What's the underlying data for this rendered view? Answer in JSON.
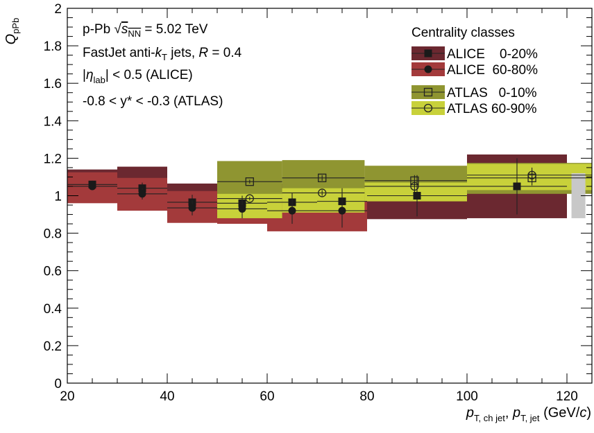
{
  "chart_data": {
    "type": "scatter",
    "title": "",
    "xlabel": {
      "p": "p",
      "sub1": "T, ch jet",
      "sep": ", ",
      "p2": "p",
      "sub2": "T, jet",
      "unit": " (GeV/",
      "c": "c",
      "close": ")"
    },
    "ylabel": {
      "q": "Q",
      "sub": "pPb"
    },
    "xlim": [
      20,
      125
    ],
    "ylim": [
      0,
      2
    ],
    "x_ticks": [
      "20",
      "40",
      "60",
      "80",
      "100",
      "120"
    ],
    "y_ticks": [
      "0",
      "0.2",
      "0.4",
      "0.6",
      "0.8",
      "1",
      "1.2",
      "1.4",
      "1.6",
      "1.8",
      "2"
    ],
    "x_tick_values": [
      20,
      40,
      60,
      80,
      100,
      120
    ],
    "y_tick_values": [
      0,
      0.2,
      0.4,
      0.6,
      0.8,
      1,
      1.2,
      1.4,
      1.6,
      1.8,
      2
    ],
    "annotations": {
      "line1": {
        "a": "p-Pb ",
        "root": "√",
        "s": "s",
        "sub": "NN",
        "b": " = 5.02 TeV"
      },
      "line2": {
        "a": "FastJet anti-",
        "k": "k",
        "ksub": "T",
        "b": " jets, ",
        "r": "R",
        "c": " = 0.4"
      },
      "line3": {
        "a": "|",
        "eta": "η",
        "sub": "lab",
        "b": "| < 0.5 (ALICE)"
      },
      "line4": "-0.8 < y* < -0.3 (ATLAS)"
    },
    "legend": {
      "title": "Centrality classes",
      "position": "top-right",
      "entries": [
        {
          "label": "ALICE    0-20%",
          "series": 0
        },
        {
          "label": "ALICE  60-80%",
          "series": 1
        },
        {
          "label": "ATLAS   0-10%",
          "series": 2
        },
        {
          "label": "ATLAS 60-90%",
          "series": 3
        }
      ]
    },
    "normalization_box": {
      "x": 122.3,
      "ylow": 0.88,
      "yhigh": 1.12,
      "color": "#c8c8c8"
    },
    "series": [
      {
        "name": "ALICE 0-20%",
        "marker": "filled-square",
        "box_color": "#6b2830",
        "points": [
          {
            "x": 25,
            "xlo": 20,
            "xhi": 30,
            "y": 1.06,
            "stat": 0.02,
            "sys_lo": 0.97,
            "sys_hi": 1.14
          },
          {
            "x": 35,
            "xlo": 30,
            "xhi": 40,
            "y": 1.04,
            "stat": 0.03,
            "sys_lo": 0.93,
            "sys_hi": 1.155
          },
          {
            "x": 45,
            "xlo": 40,
            "xhi": 50,
            "y": 0.965,
            "stat": 0.04,
            "sys_lo": 0.87,
            "sys_hi": 1.065
          },
          {
            "x": 55,
            "xlo": 50,
            "xhi": 60,
            "y": 0.96,
            "stat": 0.04,
            "sys_lo": 0.86,
            "sys_hi": 1.06
          },
          {
            "x": 65,
            "xlo": 60,
            "xhi": 70,
            "y": 0.965,
            "stat": 0.05,
            "sys_lo": 0.87,
            "sys_hi": 1.065
          },
          {
            "x": 75,
            "xlo": 70,
            "xhi": 80,
            "y": 0.97,
            "stat": 0.07,
            "sys_lo": 0.87,
            "sys_hi": 1.07
          },
          {
            "x": 90,
            "xlo": 80,
            "xhi": 100,
            "y": 1.0,
            "stat": 0.11,
            "sys_lo": 0.875,
            "sys_hi": 1.13
          },
          {
            "x": 110,
            "xlo": 100,
            "xhi": 120,
            "y": 1.05,
            "stat": 0.15,
            "sys_lo": 0.88,
            "sys_hi": 1.22
          }
        ]
      },
      {
        "name": "ALICE 60-80%",
        "marker": "filled-circle",
        "box_color": "#a33a3b",
        "points": [
          {
            "x": 25,
            "xlo": 20,
            "xhi": 30,
            "y": 1.05,
            "stat": 0.02,
            "sys_lo": 0.96,
            "sys_hi": 1.125
          },
          {
            "x": 35,
            "xlo": 30,
            "xhi": 40,
            "y": 1.01,
            "stat": 0.03,
            "sys_lo": 0.92,
            "sys_hi": 1.095
          },
          {
            "x": 45,
            "xlo": 40,
            "xhi": 50,
            "y": 0.935,
            "stat": 0.04,
            "sys_lo": 0.855,
            "sys_hi": 1.025
          },
          {
            "x": 55,
            "xlo": 50,
            "xhi": 60,
            "y": 0.93,
            "stat": 0.05,
            "sys_lo": 0.85,
            "sys_hi": 1.02
          },
          {
            "x": 65,
            "xlo": 60,
            "xhi": 70,
            "y": 0.92,
            "stat": 0.07,
            "sys_lo": 0.81,
            "sys_hi": 1.01
          },
          {
            "x": 75,
            "xlo": 70,
            "xhi": 80,
            "y": 0.92,
            "stat": 0.09,
            "sys_lo": 0.81,
            "sys_hi": 1.01
          }
        ]
      },
      {
        "name": "ATLAS 0-10%",
        "marker": "open-square",
        "box_color": "#8f9531",
        "points": [
          {
            "x": 56.5,
            "xlo": 50,
            "xhi": 63,
            "y": 1.075,
            "stat": 0.01,
            "sys_lo": 0.97,
            "sys_hi": 1.185
          },
          {
            "x": 71,
            "xlo": 63,
            "xhi": 79.5,
            "y": 1.095,
            "stat": 0.015,
            "sys_lo": 0.98,
            "sys_hi": 1.19
          },
          {
            "x": 89.5,
            "xlo": 79.5,
            "xhi": 100,
            "y": 1.08,
            "stat": 0.03,
            "sys_lo": 0.985,
            "sys_hi": 1.16
          },
          {
            "x": 113,
            "xlo": 100,
            "xhi": 126,
            "y": 1.095,
            "stat": 0.04,
            "sys_lo": 1.01,
            "sys_hi": 1.175
          }
        ]
      },
      {
        "name": "ATLAS 60-90%",
        "marker": "open-circle",
        "box_color": "#c8d13a",
        "points": [
          {
            "x": 56.5,
            "xlo": 50,
            "xhi": 63,
            "y": 0.985,
            "stat": 0.01,
            "sys_lo": 0.88,
            "sys_hi": 1.01
          },
          {
            "x": 71,
            "xlo": 63,
            "xhi": 79.5,
            "y": 1.015,
            "stat": 0.015,
            "sys_lo": 0.91,
            "sys_hi": 1.04
          },
          {
            "x": 89.5,
            "xlo": 79.5,
            "xhi": 100,
            "y": 1.05,
            "stat": 0.03,
            "sys_lo": 0.97,
            "sys_hi": 1.07
          },
          {
            "x": 113,
            "xlo": 100,
            "xhi": 126,
            "y": 1.11,
            "stat": 0.04,
            "sys_lo": 1.03,
            "sys_hi": 1.17
          }
        ]
      }
    ]
  }
}
